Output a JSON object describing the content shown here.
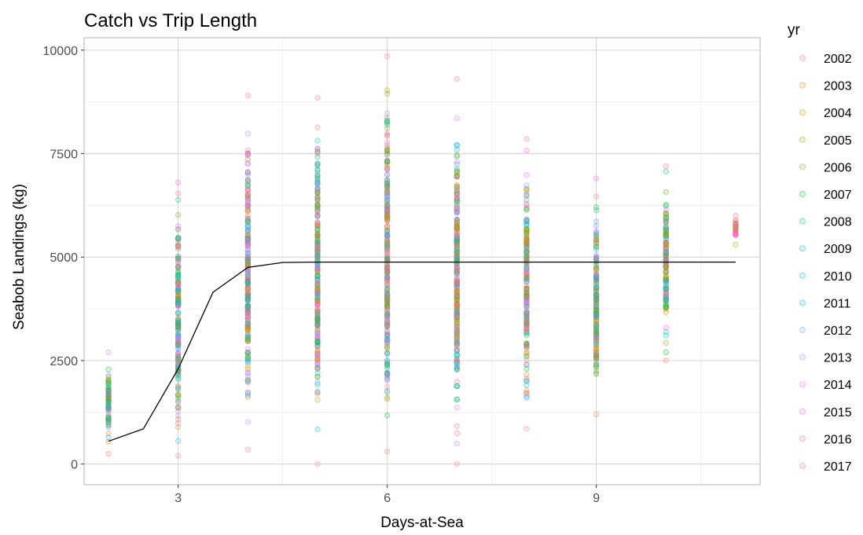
{
  "chart_data": {
    "type": "scatter",
    "title": "Catch vs Trip Length",
    "xlabel": "Days-at-Sea",
    "ylabel": "Seabob Landings (kg)",
    "xlim": [
      1.65,
      11.35
    ],
    "ylim": [
      -500,
      10300
    ],
    "xticks": [
      3,
      6,
      9
    ],
    "yticks": [
      0,
      2500,
      5000,
      7500,
      10000
    ],
    "grid": true,
    "legend": {
      "title": "yr",
      "position": "right",
      "items": [
        "2002",
        "2003",
        "2004",
        "2005",
        "2006",
        "2007",
        "2008",
        "2009",
        "2010",
        "2011",
        "2012",
        "2013",
        "2014",
        "2015",
        "2016",
        "2017"
      ]
    },
    "series_colors": [
      "#F8766D",
      "#E58700",
      "#C99800",
      "#A3A500",
      "#6BB100",
      "#00BA38",
      "#00BF7D",
      "#00C0AF",
      "#00BCD8",
      "#00B0F6",
      "#619CFF",
      "#B983FF",
      "#E76BF3",
      "#FD61D1",
      "#FF67A4",
      "#FF6C91"
    ],
    "point_clusters": [
      {
        "x": 2,
        "y_min": 250,
        "y_max": 2700,
        "years": [
          0,
          1,
          2,
          3,
          4,
          5,
          6,
          7,
          8,
          9,
          10,
          11
        ]
      },
      {
        "x": 3,
        "y_min": 200,
        "y_max": 6800,
        "years": [
          0,
          1,
          2,
          3,
          4,
          5,
          6,
          7,
          8,
          9,
          10,
          11,
          12,
          13
        ]
      },
      {
        "x": 4,
        "y_min": 350,
        "y_max": 8900,
        "years": [
          0,
          1,
          2,
          3,
          4,
          5,
          6,
          7,
          8,
          9,
          10,
          11,
          12,
          13,
          14,
          15
        ]
      },
      {
        "x": 5,
        "y_min": 0,
        "y_max": 8850,
        "years": [
          0,
          1,
          2,
          3,
          4,
          5,
          6,
          7,
          8,
          9,
          10,
          11,
          12,
          13,
          14,
          15
        ]
      },
      {
        "x": 6,
        "y_min": 300,
        "y_max": 9850,
        "years": [
          0,
          1,
          2,
          3,
          4,
          5,
          6,
          7,
          8,
          9,
          10,
          11,
          12,
          13,
          14,
          15
        ]
      },
      {
        "x": 7,
        "y_min": 0,
        "y_max": 9300,
        "years": [
          0,
          1,
          2,
          3,
          4,
          5,
          6,
          7,
          8,
          9,
          10,
          11,
          12,
          13,
          14,
          15
        ]
      },
      {
        "x": 8,
        "y_min": 850,
        "y_max": 7850,
        "years": [
          0,
          1,
          2,
          3,
          4,
          5,
          6,
          7,
          8,
          9,
          10,
          11,
          12,
          13,
          14,
          15
        ]
      },
      {
        "x": 9,
        "y_min": 1200,
        "y_max": 6900,
        "years": [
          0,
          1,
          2,
          3,
          4,
          5,
          6,
          7,
          8,
          9,
          10,
          11,
          12,
          13
        ]
      },
      {
        "x": 10,
        "y_min": 2500,
        "y_max": 7200,
        "years": [
          0,
          1,
          2,
          3,
          4,
          5,
          6,
          7,
          8,
          12,
          13,
          14
        ]
      },
      {
        "x": 11,
        "y_min": 5300,
        "y_max": 6000,
        "years": [
          3,
          13,
          14
        ]
      }
    ],
    "fit_line": {
      "x": [
        2,
        2.5,
        3,
        3.5,
        4,
        4.5,
        5,
        6,
        7,
        8,
        9,
        10,
        11
      ],
      "y": [
        550,
        850,
        2300,
        4150,
        4750,
        4870,
        4880,
        4880,
        4880,
        4880,
        4880,
        4880,
        4880
      ]
    }
  }
}
